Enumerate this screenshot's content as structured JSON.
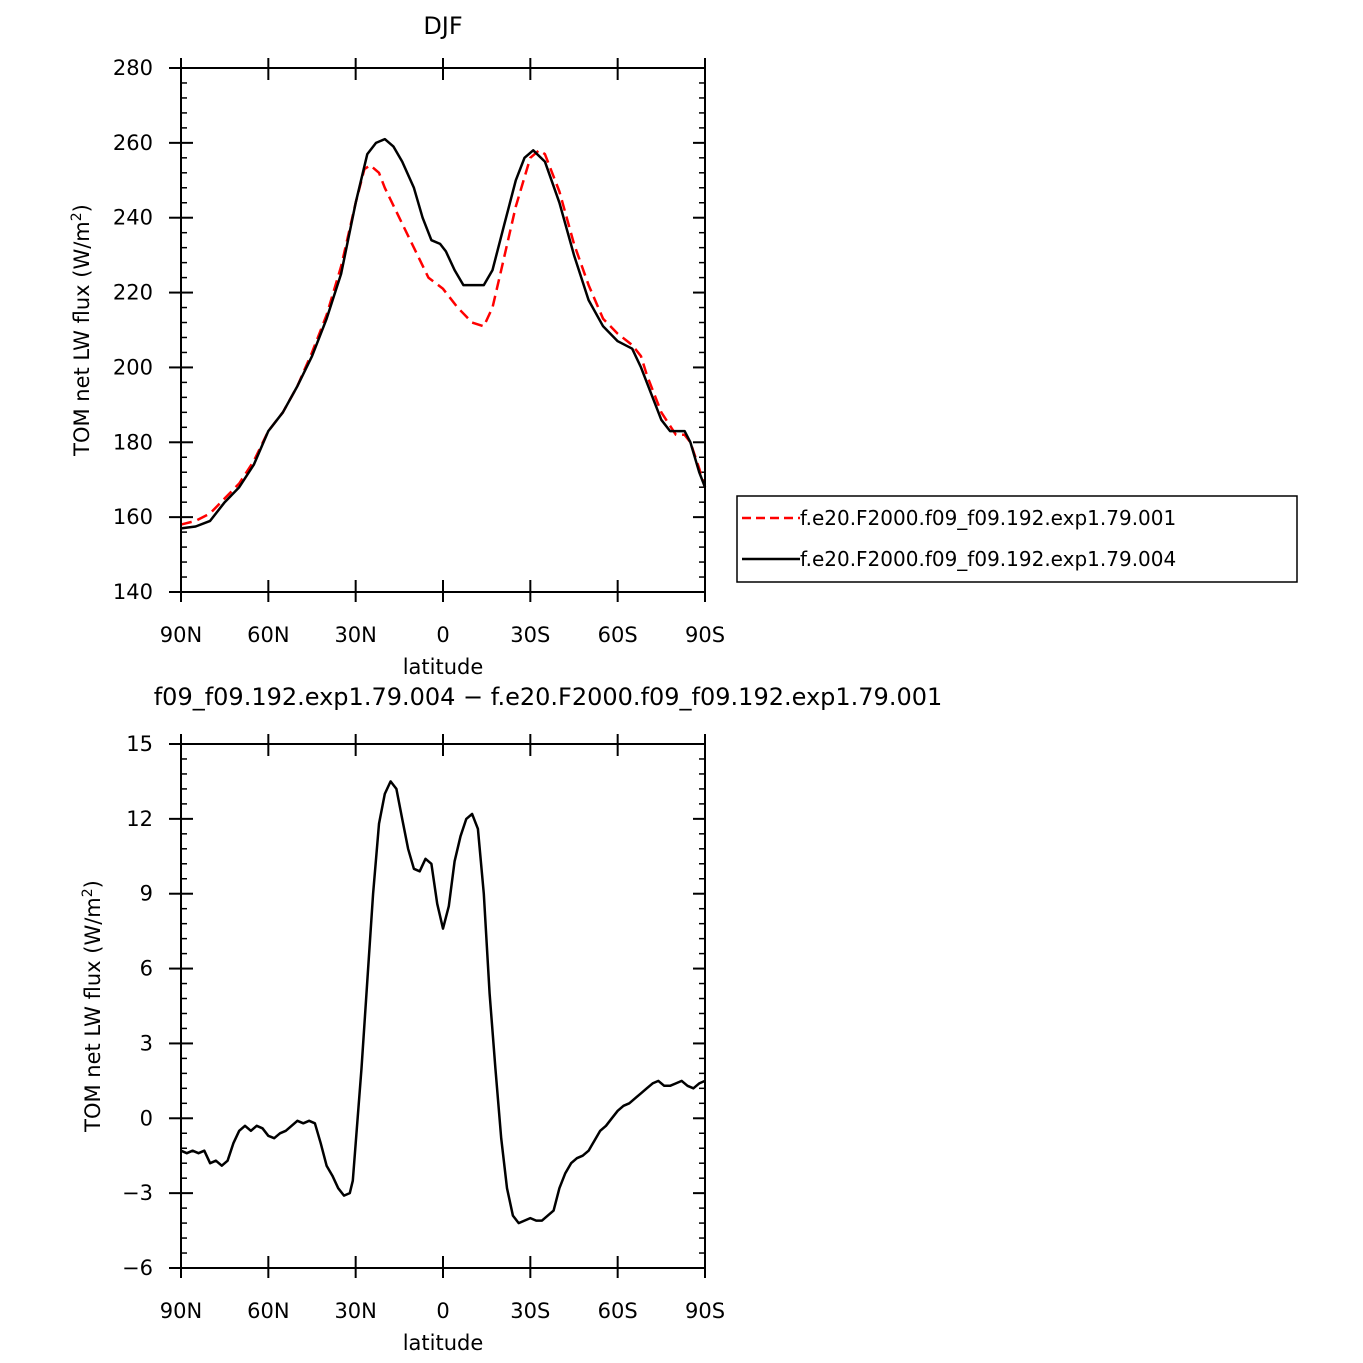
{
  "chart_data": [
    {
      "type": "line",
      "title": "DJF",
      "xlabel": "latitude",
      "ylabel": "TOM net LW flux (W/m",
      "ylabel_sup": "2",
      "ylabel_end": ")",
      "xlim": [
        -90,
        90
      ],
      "ylim": [
        140,
        280
      ],
      "x_ticks": [
        -90,
        -60,
        -30,
        0,
        30,
        60,
        90
      ],
      "x_tick_labels": [
        "90N",
        "60N",
        "30N",
        "0",
        "30S",
        "60S",
        "90S"
      ],
      "y_ticks": [
        140,
        160,
        180,
        200,
        220,
        240,
        260,
        280
      ],
      "y_tick_labels": [
        "140",
        "160",
        "180",
        "200",
        "220",
        "240",
        "260",
        "280"
      ],
      "legend_position": "right",
      "series": [
        {
          "name": "f.e20.F2000.f09_f09.192.exp1.79.001",
          "color": "#ff0000",
          "dash": "dashed",
          "x": [
            -90,
            -85,
            -80,
            -75,
            -70,
            -65,
            -60,
            -55,
            -50,
            -45,
            -40,
            -35,
            -30,
            -27,
            -25,
            -22,
            -20,
            -15,
            -10,
            -5,
            0,
            5,
            10,
            14,
            17,
            20,
            25,
            30,
            33,
            35,
            40,
            45,
            50,
            55,
            60,
            65,
            68,
            70,
            75,
            80,
            83,
            85,
            88,
            90
          ],
          "y": [
            158,
            159,
            161,
            165,
            169,
            175,
            183,
            188,
            195,
            204,
            214,
            227,
            244,
            253,
            254,
            252,
            248,
            240,
            232,
            224,
            221,
            216,
            212,
            211,
            216,
            226,
            243,
            256,
            258,
            257,
            247,
            233,
            222,
            213,
            209,
            206,
            203,
            198,
            188,
            182,
            182,
            180,
            173,
            168
          ]
        },
        {
          "name": "f.e20.F2000.f09_f09.192.exp1.79.004",
          "color": "#000000",
          "dash": "solid",
          "x": [
            -90,
            -85,
            -80,
            -75,
            -70,
            -65,
            -60,
            -55,
            -50,
            -45,
            -40,
            -35,
            -30,
            -26,
            -23,
            -20,
            -17,
            -14,
            -10,
            -7,
            -4,
            -1,
            1,
            4,
            7,
            10,
            14,
            17,
            21,
            25,
            28,
            31,
            35,
            40,
            45,
            50,
            55,
            60,
            65,
            68,
            70,
            75,
            78,
            80,
            83,
            85,
            88,
            90
          ],
          "y": [
            157,
            157.5,
            159,
            164,
            168,
            174,
            183,
            188,
            195,
            203,
            213,
            225,
            244,
            257,
            260,
            261,
            259,
            255,
            248,
            240,
            234,
            233,
            231,
            226,
            222,
            222,
            222,
            226,
            238,
            250,
            256,
            258,
            255,
            244,
            230,
            218,
            211,
            207,
            205,
            200,
            196,
            186,
            183,
            183,
            183,
            180,
            172,
            168
          ]
        }
      ]
    },
    {
      "type": "line",
      "title": "f09_f09.192.exp1.79.004 − f.e20.F2000.f09_f09.192.exp1.79.001",
      "xlabel": "latitude",
      "ylabel": "TOM net LW flux (W/m",
      "ylabel_sup": "2",
      "ylabel_end": ")",
      "xlim": [
        -90,
        90
      ],
      "ylim": [
        -6,
        15
      ],
      "x_ticks": [
        -90,
        -60,
        -30,
        0,
        30,
        60,
        90
      ],
      "x_tick_labels": [
        "90N",
        "60N",
        "30N",
        "0",
        "30S",
        "60S",
        "90S"
      ],
      "y_ticks": [
        -6,
        -3,
        0,
        3,
        6,
        9,
        12,
        15
      ],
      "y_tick_labels": [
        "−6",
        "−3",
        "0",
        "3",
        "6",
        "9",
        "12",
        "15"
      ],
      "series": [
        {
          "color": "#000000",
          "dash": "solid",
          "x": [
            -90,
            -88,
            -86,
            -84,
            -82,
            -80,
            -78,
            -76,
            -74,
            -72,
            -70,
            -68,
            -66,
            -64,
            -62,
            -60,
            -58,
            -56,
            -54,
            -52,
            -50,
            -48,
            -46,
            -44,
            -42,
            -40,
            -38,
            -36,
            -34,
            -32,
            -31,
            -30,
            -28,
            -26,
            -24,
            -22,
            -20,
            -18,
            -16,
            -14,
            -12,
            -10,
            -8,
            -6,
            -4,
            -2,
            0,
            2,
            4,
            6,
            8,
            10,
            12,
            14,
            16,
            18,
            20,
            22,
            24,
            26,
            28,
            30,
            32,
            34,
            36,
            38,
            40,
            42,
            44,
            46,
            48,
            50,
            52,
            54,
            56,
            58,
            60,
            62,
            64,
            66,
            68,
            70,
            72,
            74,
            76,
            78,
            80,
            82,
            84,
            86,
            88,
            90
          ],
          "y": [
            -1.3,
            -1.4,
            -1.3,
            -1.4,
            -1.3,
            -1.8,
            -1.7,
            -1.9,
            -1.7,
            -1.0,
            -0.5,
            -0.3,
            -0.5,
            -0.3,
            -0.4,
            -0.7,
            -0.8,
            -0.6,
            -0.5,
            -0.3,
            -0.1,
            -0.2,
            -0.1,
            -0.2,
            -1.0,
            -1.9,
            -2.3,
            -2.8,
            -3.1,
            -3.0,
            -2.5,
            -1.0,
            2.0,
            5.5,
            9.0,
            11.8,
            13.0,
            13.5,
            13.2,
            12.0,
            10.8,
            10.0,
            9.9,
            10.4,
            10.2,
            8.6,
            7.6,
            8.5,
            10.3,
            11.3,
            12.0,
            12.2,
            11.6,
            9.0,
            5.0,
            2.0,
            -0.8,
            -2.8,
            -3.9,
            -4.2,
            -4.1,
            -4.0,
            -4.1,
            -4.1,
            -3.9,
            -3.7,
            -2.8,
            -2.2,
            -1.8,
            -1.6,
            -1.5,
            -1.3,
            -0.9,
            -0.5,
            -0.3,
            0.0,
            0.3,
            0.5,
            0.6,
            0.8,
            1.0,
            1.2,
            1.4,
            1.5,
            1.3,
            1.3,
            1.4,
            1.5,
            1.3,
            1.2,
            1.4,
            1.5
          ]
        }
      ]
    }
  ]
}
